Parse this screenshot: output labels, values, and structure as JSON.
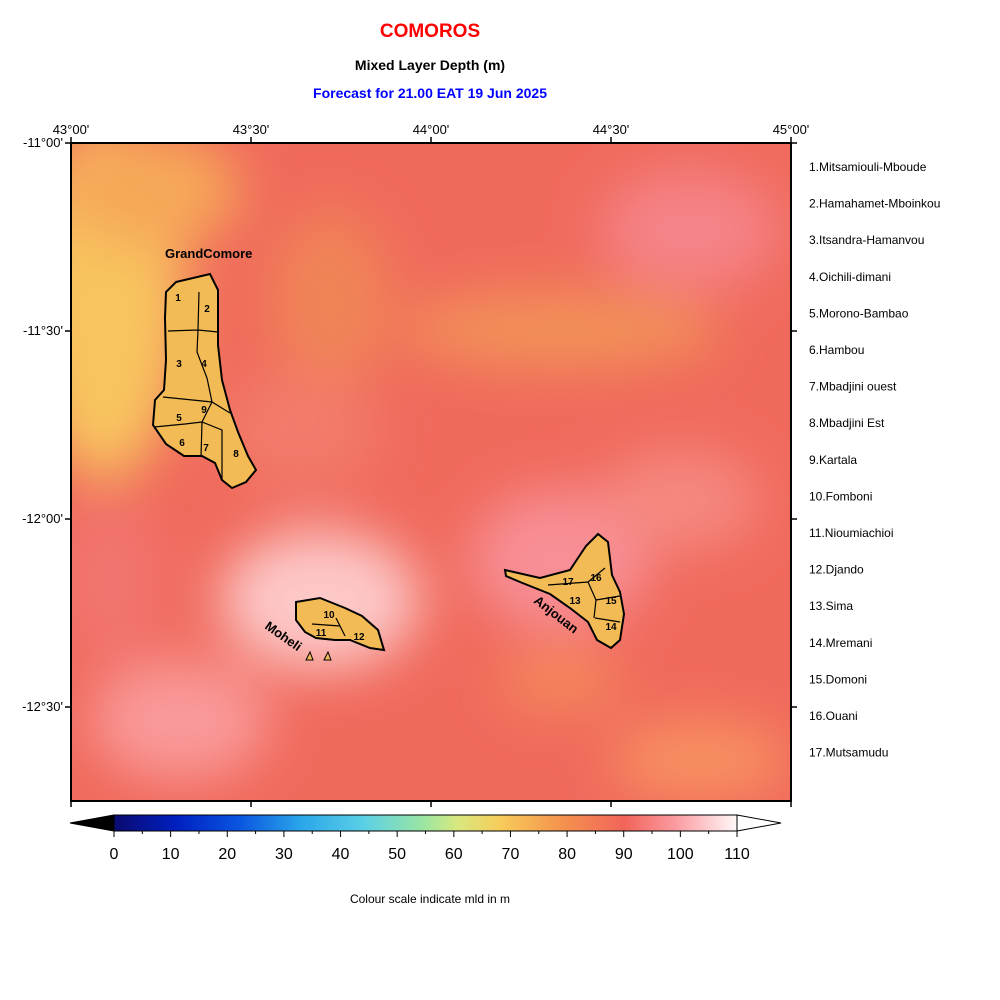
{
  "header": {
    "country": "COMOROS",
    "variable": "Mixed Layer Depth (m)",
    "forecast": "Forecast for  21.00 EAT 19 Jun 2025"
  },
  "map": {
    "lon_labels": [
      "43°00'",
      "43°30'",
      "44°00'",
      "44°30'",
      "45°00'"
    ],
    "lat_labels": [
      "-11°00'",
      "-11°30'",
      "-12°00'",
      "-12°30'"
    ],
    "lon_range": [
      43.0,
      45.0
    ],
    "lat_range": [
      -11.0,
      -12.75
    ],
    "islands": [
      {
        "name": "GrandComore",
        "district_ids": [
          "1",
          "2",
          "3",
          "4",
          "5",
          "6",
          "7",
          "8",
          "9"
        ]
      },
      {
        "name": "Moheli",
        "district_ids": [
          "10",
          "11",
          "12"
        ]
      },
      {
        "name": "Anjouan",
        "district_ids": [
          "13",
          "14",
          "15",
          "16",
          "17"
        ]
      }
    ]
  },
  "districts": [
    "1.Mitsamiouli-Mboude",
    "2.Hamahamet-Mboinkou",
    "3.Itsandra-Hamanvou",
    "4.Oichili-dimani",
    "5.Morono-Bambao",
    "6.Hambou",
    "7.Mbadjini ouest",
    "8.Mbadjini Est",
    "9.Kartala",
    "10.Fomboni",
    "11.Nioumiachioi",
    "12.Djando",
    "13.Sima",
    "14.Mremani",
    "15.Domoni",
    "16.Ouani",
    "17.Mutsamudu"
  ],
  "colorbar": {
    "ticks": [
      "0",
      "10",
      "20",
      "30",
      "40",
      "50",
      "60",
      "70",
      "80",
      "90",
      "100",
      "110"
    ],
    "min": 0,
    "max": 110,
    "step": 10,
    "note": "Colour scale indicate mld in m"
  }
}
